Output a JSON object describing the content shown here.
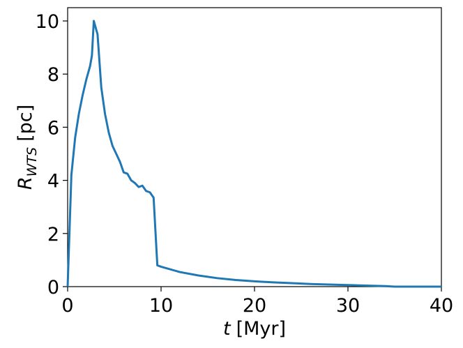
{
  "chart_data": {
    "type": "line",
    "xlabel": {
      "symbol": "t",
      "unit": "[Myr]"
    },
    "ylabel": {
      "symbol": "R",
      "subscript": "WTS",
      "unit": "[pc]"
    },
    "x": [
      0,
      0.4,
      0.8,
      1.2,
      1.6,
      2.0,
      2.4,
      2.6,
      2.8,
      3.2,
      3.6,
      4.0,
      4.4,
      4.8,
      5.2,
      5.6,
      6.0,
      6.4,
      6.8,
      7.2,
      7.6,
      8.0,
      8.4,
      8.8,
      9.2,
      9.6,
      10,
      12,
      14,
      16,
      18,
      20,
      22,
      24,
      26,
      28,
      30,
      32,
      34,
      35,
      40
    ],
    "series": [
      {
        "color": "#1f77b4",
        "values": [
          0,
          4.2,
          5.6,
          6.5,
          7.2,
          7.8,
          8.3,
          8.7,
          10.0,
          9.5,
          7.5,
          6.5,
          5.8,
          5.3,
          5.0,
          4.7,
          4.3,
          4.25,
          4.0,
          3.9,
          3.75,
          3.8,
          3.6,
          3.55,
          3.35,
          0.8,
          0.75,
          0.55,
          0.42,
          0.32,
          0.25,
          0.2,
          0.16,
          0.13,
          0.1,
          0.08,
          0.06,
          0.04,
          0.02,
          0.0,
          0.0
        ]
      }
    ],
    "xlim": [
      0,
      40
    ],
    "xticks": [
      0,
      10,
      20,
      30,
      40
    ],
    "ylim": [
      0,
      10.5
    ],
    "yticks": [
      0,
      2,
      4,
      6,
      8,
      10
    ]
  }
}
